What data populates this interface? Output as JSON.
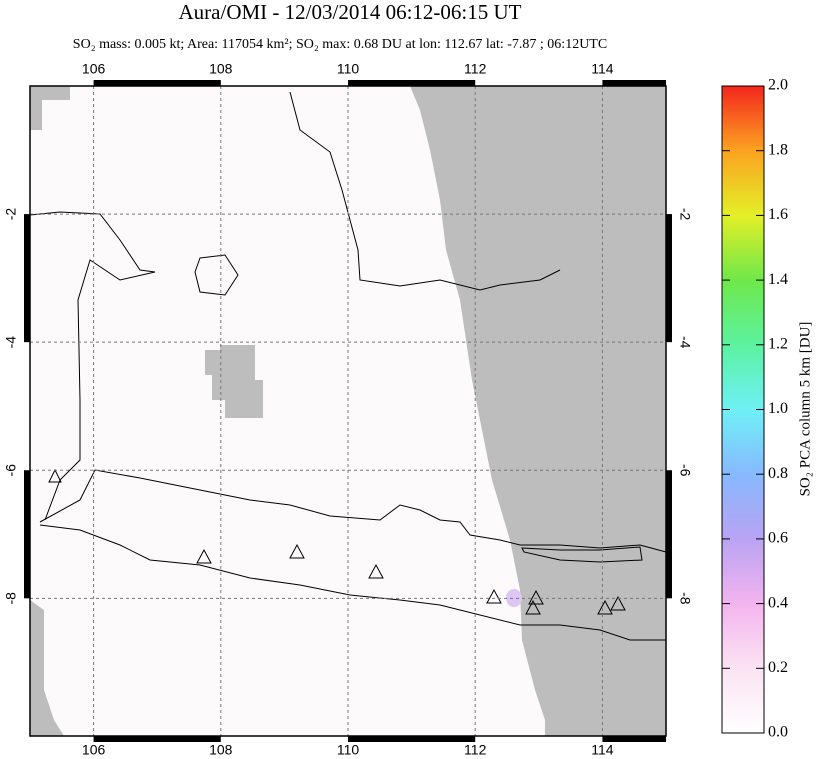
{
  "map": {
    "title": "Aura/OMI - 12/03/2014 06:12-06:15 UT",
    "subtitle": "SO₂ mass: 0.005 kt; Area: 117054 km²; SO₂ max: 0.68 DU at lon: 112.67 lat: -7.87 ; 06:12UTC",
    "xlim": [
      105,
      115
    ],
    "ylim": [
      -10.15,
      0
    ],
    "xticks": [
      106,
      108,
      110,
      112,
      114
    ],
    "yticks": [
      -2,
      -4,
      -6,
      -8
    ],
    "colorbar": {
      "label": "SO₂ PCA column 5 km [DU]",
      "lim": [
        0,
        2
      ],
      "ticks": [
        {
          "value": 0,
          "label": "0.0"
        },
        {
          "value": 0.2,
          "label": "0.2"
        },
        {
          "value": 0.4,
          "label": "0.4"
        },
        {
          "value": 0.6,
          "label": "0.6"
        },
        {
          "value": 0.8,
          "label": "0.8"
        },
        {
          "value": 1,
          "label": "1.0"
        },
        {
          "value": 1.2,
          "label": "1.2"
        },
        {
          "value": 1.4,
          "label": "1.4"
        },
        {
          "value": 1.6,
          "label": "1.6"
        },
        {
          "value": 1.8,
          "label": "1.8"
        },
        {
          "value": 2,
          "label": "2.0"
        }
      ]
    }
  }
}
